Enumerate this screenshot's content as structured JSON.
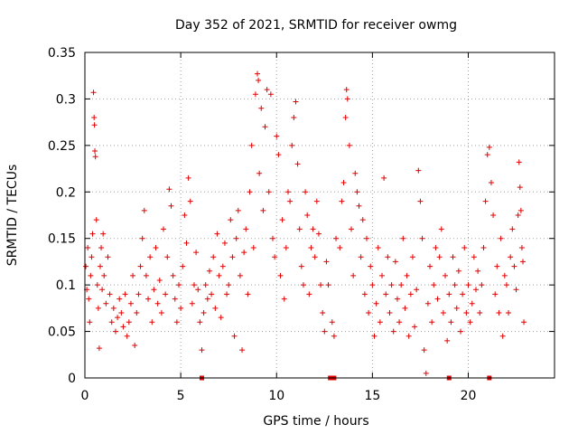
{
  "chart_data": {
    "type": "scatter",
    "title": "Day 352 of 2021, SRMTID for receiver owmg",
    "xlabel": "GPS time / hours",
    "ylabel": "SRMTID / TECUs",
    "xlim": [
      0,
      24.5
    ],
    "ylim": [
      0,
      0.35
    ],
    "xticks": [
      0,
      5,
      10,
      15,
      20
    ],
    "xtick_labels": [
      "0",
      "5",
      "10",
      "15",
      "20"
    ],
    "yticks": [
      0,
      0.05,
      0.1,
      0.15,
      0.2,
      0.25,
      0.3,
      0.35
    ],
    "ytick_labels": [
      "0",
      "0.05",
      "0.1",
      "0.15",
      "0.2",
      "0.25",
      "0.3",
      "0.35"
    ],
    "grid": true,
    "marker": "+",
    "color": "#e00000",
    "zero_markers_x": [
      6.1,
      12.8,
      13.0,
      19.0,
      21.1
    ],
    "series": [
      {
        "name": "SRMTID",
        "points": [
          [
            0.05,
            0.12
          ],
          [
            0.1,
            0.095
          ],
          [
            0.15,
            0.14
          ],
          [
            0.2,
            0.085
          ],
          [
            0.25,
            0.06
          ],
          [
            0.3,
            0.11
          ],
          [
            0.35,
            0.13
          ],
          [
            0.4,
            0.155
          ],
          [
            0.45,
            0.307
          ],
          [
            0.48,
            0.28
          ],
          [
            0.5,
            0.272
          ],
          [
            0.52,
            0.244
          ],
          [
            0.55,
            0.238
          ],
          [
            0.6,
            0.17
          ],
          [
            0.65,
            0.1
          ],
          [
            0.7,
            0.075
          ],
          [
            0.75,
            0.032
          ],
          [
            0.8,
            0.12
          ],
          [
            0.85,
            0.14
          ],
          [
            0.9,
            0.095
          ],
          [
            0.95,
            0.155
          ],
          [
            1.0,
            0.11
          ],
          [
            1.1,
            0.08
          ],
          [
            1.2,
            0.13
          ],
          [
            1.3,
            0.09
          ],
          [
            1.4,
            0.06
          ],
          [
            1.5,
            0.075
          ],
          [
            1.6,
            0.05
          ],
          [
            1.7,
            0.065
          ],
          [
            1.8,
            0.085
          ],
          [
            1.9,
            0.07
          ],
          [
            2.0,
            0.055
          ],
          [
            2.1,
            0.09
          ],
          [
            2.2,
            0.045
          ],
          [
            2.3,
            0.06
          ],
          [
            2.4,
            0.08
          ],
          [
            2.5,
            0.11
          ],
          [
            2.6,
            0.035
          ],
          [
            2.7,
            0.07
          ],
          [
            2.8,
            0.09
          ],
          [
            2.9,
            0.12
          ],
          [
            3.0,
            0.15
          ],
          [
            3.1,
            0.18
          ],
          [
            3.2,
            0.11
          ],
          [
            3.3,
            0.085
          ],
          [
            3.4,
            0.13
          ],
          [
            3.5,
            0.06
          ],
          [
            3.6,
            0.095
          ],
          [
            3.7,
            0.14
          ],
          [
            3.8,
            0.08
          ],
          [
            3.9,
            0.105
          ],
          [
            4.0,
            0.07
          ],
          [
            4.1,
            0.16
          ],
          [
            4.2,
            0.09
          ],
          [
            4.3,
            0.13
          ],
          [
            4.4,
            0.203
          ],
          [
            4.5,
            0.185
          ],
          [
            4.6,
            0.11
          ],
          [
            4.7,
            0.085
          ],
          [
            4.8,
            0.06
          ],
          [
            4.9,
            0.1
          ],
          [
            5.0,
            0.075
          ],
          [
            5.1,
            0.12
          ],
          [
            5.2,
            0.175
          ],
          [
            5.3,
            0.145
          ],
          [
            5.4,
            0.215
          ],
          [
            5.5,
            0.19
          ],
          [
            5.6,
            0.08
          ],
          [
            5.7,
            0.1
          ],
          [
            5.8,
            0.135
          ],
          [
            5.9,
            0.095
          ],
          [
            6.0,
            0.06
          ],
          [
            6.1,
            0.03
          ],
          [
            6.2,
            0.07
          ],
          [
            6.3,
            0.1
          ],
          [
            6.4,
            0.085
          ],
          [
            6.5,
            0.115
          ],
          [
            6.6,
            0.09
          ],
          [
            6.7,
            0.13
          ],
          [
            6.8,
            0.075
          ],
          [
            6.9,
            0.155
          ],
          [
            7.0,
            0.11
          ],
          [
            7.1,
            0.065
          ],
          [
            7.2,
            0.12
          ],
          [
            7.3,
            0.145
          ],
          [
            7.4,
            0.09
          ],
          [
            7.5,
            0.1
          ],
          [
            7.6,
            0.17
          ],
          [
            7.7,
            0.13
          ],
          [
            7.8,
            0.045
          ],
          [
            7.9,
            0.15
          ],
          [
            8.0,
            0.18
          ],
          [
            8.1,
            0.11
          ],
          [
            8.2,
            0.03
          ],
          [
            8.3,
            0.135
          ],
          [
            8.4,
            0.16
          ],
          [
            8.5,
            0.09
          ],
          [
            8.6,
            0.2
          ],
          [
            8.7,
            0.25
          ],
          [
            8.8,
            0.14
          ],
          [
            8.9,
            0.305
          ],
          [
            9.0,
            0.327
          ],
          [
            9.05,
            0.32
          ],
          [
            9.1,
            0.22
          ],
          [
            9.2,
            0.29
          ],
          [
            9.3,
            0.18
          ],
          [
            9.4,
            0.27
          ],
          [
            9.5,
            0.31
          ],
          [
            9.6,
            0.2
          ],
          [
            9.7,
            0.305
          ],
          [
            9.8,
            0.15
          ],
          [
            9.9,
            0.13
          ],
          [
            10.0,
            0.26
          ],
          [
            10.1,
            0.24
          ],
          [
            10.2,
            0.11
          ],
          [
            10.3,
            0.17
          ],
          [
            10.4,
            0.085
          ],
          [
            10.5,
            0.14
          ],
          [
            10.6,
            0.2
          ],
          [
            10.7,
            0.19
          ],
          [
            10.8,
            0.25
          ],
          [
            10.9,
            0.28
          ],
          [
            11.0,
            0.297
          ],
          [
            11.1,
            0.23
          ],
          [
            11.2,
            0.16
          ],
          [
            11.3,
            0.12
          ],
          [
            11.4,
            0.1
          ],
          [
            11.5,
            0.2
          ],
          [
            11.6,
            0.175
          ],
          [
            11.7,
            0.09
          ],
          [
            11.8,
            0.14
          ],
          [
            11.9,
            0.16
          ],
          [
            12.0,
            0.13
          ],
          [
            12.1,
            0.19
          ],
          [
            12.2,
            0.155
          ],
          [
            12.3,
            0.1
          ],
          [
            12.4,
            0.07
          ],
          [
            12.5,
            0.05
          ],
          [
            12.6,
            0.125
          ],
          [
            12.7,
            0.1
          ],
          [
            12.9,
            0.06
          ],
          [
            13.0,
            0.045
          ],
          [
            13.1,
            0.15
          ],
          [
            13.3,
            0.14
          ],
          [
            13.4,
            0.19
          ],
          [
            13.5,
            0.21
          ],
          [
            13.6,
            0.28
          ],
          [
            13.65,
            0.31
          ],
          [
            13.7,
            0.3
          ],
          [
            13.8,
            0.25
          ],
          [
            13.9,
            0.16
          ],
          [
            14.0,
            0.11
          ],
          [
            14.1,
            0.22
          ],
          [
            14.2,
            0.2
          ],
          [
            14.3,
            0.185
          ],
          [
            14.4,
            0.13
          ],
          [
            14.5,
            0.17
          ],
          [
            14.6,
            0.09
          ],
          [
            14.7,
            0.15
          ],
          [
            14.8,
            0.07
          ],
          [
            14.9,
            0.12
          ],
          [
            15.0,
            0.1
          ],
          [
            15.1,
            0.045
          ],
          [
            15.2,
            0.08
          ],
          [
            15.3,
            0.14
          ],
          [
            15.4,
            0.06
          ],
          [
            15.5,
            0.11
          ],
          [
            15.6,
            0.215
          ],
          [
            15.7,
            0.09
          ],
          [
            15.8,
            0.13
          ],
          [
            15.9,
            0.07
          ],
          [
            16.0,
            0.1
          ],
          [
            16.1,
            0.05
          ],
          [
            16.2,
            0.125
          ],
          [
            16.3,
            0.085
          ],
          [
            16.4,
            0.06
          ],
          [
            16.5,
            0.1
          ],
          [
            16.6,
            0.15
          ],
          [
            16.7,
            0.075
          ],
          [
            16.8,
            0.11
          ],
          [
            16.9,
            0.045
          ],
          [
            17.0,
            0.09
          ],
          [
            17.1,
            0.13
          ],
          [
            17.2,
            0.055
          ],
          [
            17.3,
            0.095
          ],
          [
            17.4,
            0.223
          ],
          [
            17.5,
            0.19
          ],
          [
            17.6,
            0.15
          ],
          [
            17.7,
            0.03
          ],
          [
            17.8,
            0.005
          ],
          [
            17.9,
            0.08
          ],
          [
            18.0,
            0.12
          ],
          [
            18.1,
            0.06
          ],
          [
            18.2,
            0.1
          ],
          [
            18.3,
            0.14
          ],
          [
            18.4,
            0.085
          ],
          [
            18.5,
            0.13
          ],
          [
            18.6,
            0.16
          ],
          [
            18.7,
            0.07
          ],
          [
            18.8,
            0.11
          ],
          [
            18.9,
            0.04
          ],
          [
            19.0,
            0.09
          ],
          [
            19.1,
            0.06
          ],
          [
            19.2,
            0.13
          ],
          [
            19.3,
            0.1
          ],
          [
            19.4,
            0.075
          ],
          [
            19.5,
            0.115
          ],
          [
            19.6,
            0.05
          ],
          [
            19.7,
            0.09
          ],
          [
            19.8,
            0.14
          ],
          [
            19.9,
            0.07
          ],
          [
            20.0,
            0.1
          ],
          [
            20.1,
            0.06
          ],
          [
            20.2,
            0.08
          ],
          [
            20.3,
            0.13
          ],
          [
            20.4,
            0.095
          ],
          [
            20.5,
            0.115
          ],
          [
            20.6,
            0.07
          ],
          [
            20.7,
            0.1
          ],
          [
            20.8,
            0.14
          ],
          [
            20.9,
            0.19
          ],
          [
            21.0,
            0.24
          ],
          [
            21.1,
            0.248
          ],
          [
            21.2,
            0.21
          ],
          [
            21.3,
            0.175
          ],
          [
            21.4,
            0.09
          ],
          [
            21.5,
            0.12
          ],
          [
            21.6,
            0.07
          ],
          [
            21.7,
            0.15
          ],
          [
            21.8,
            0.045
          ],
          [
            21.9,
            0.11
          ],
          [
            22.0,
            0.1
          ],
          [
            22.1,
            0.07
          ],
          [
            22.2,
            0.13
          ],
          [
            22.3,
            0.16
          ],
          [
            22.4,
            0.12
          ],
          [
            22.5,
            0.095
          ],
          [
            22.6,
            0.175
          ],
          [
            22.65,
            0.232
          ],
          [
            22.7,
            0.205
          ],
          [
            22.75,
            0.18
          ],
          [
            22.8,
            0.14
          ],
          [
            22.85,
            0.125
          ],
          [
            22.9,
            0.06
          ]
        ]
      }
    ]
  }
}
